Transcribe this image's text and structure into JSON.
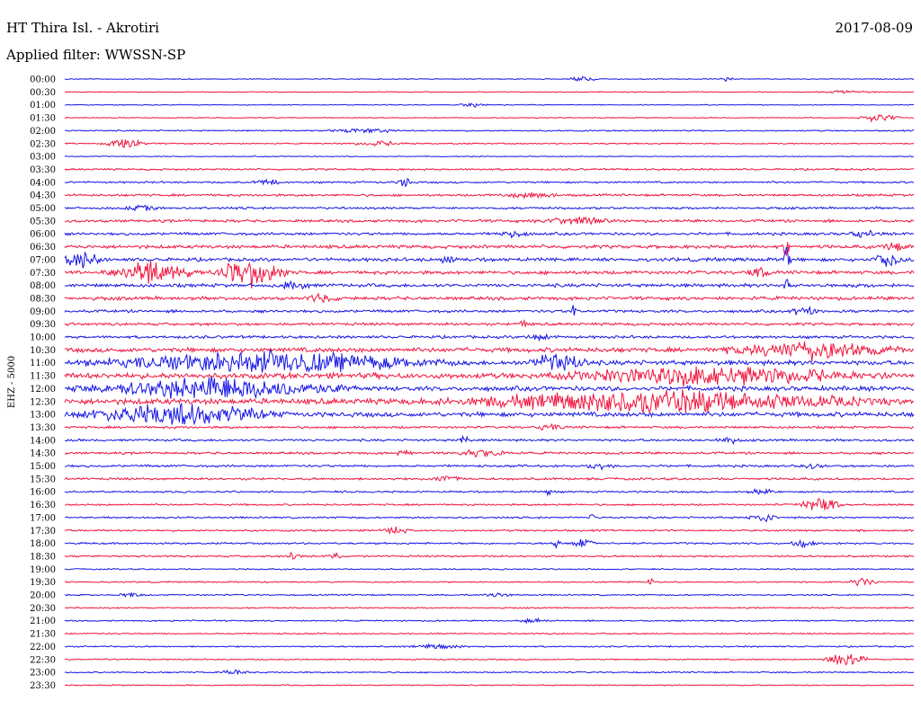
{
  "header": {
    "station": "HT Thira Isl. - Akrotiri",
    "date": "2017-08-09",
    "filter": "Applied filter: WWSSN-SP"
  },
  "channel_label": "EHZ - 5000",
  "colors": {
    "blue": "#1414e6",
    "red": "#f0143c",
    "background": "#ffffff",
    "text": "#000000"
  },
  "chart_data": {
    "type": "line",
    "subtype": "helicorder",
    "title": "HT Thira Isl. - Akrotiri",
    "subtitle": "Applied filter: WWSSN-SP",
    "ylabel": "EHZ - 5000",
    "xlabel": "",
    "minutes_per_line": 30,
    "alternating_colors": [
      "#1414e6",
      "#f0143c"
    ],
    "rows": [
      {
        "label": "00:00",
        "noise": 0.4,
        "events": [
          {
            "pos": 0.61,
            "amp": 3,
            "width": 0.02
          },
          {
            "pos": 0.78,
            "amp": 2,
            "width": 0.01
          }
        ]
      },
      {
        "label": "00:30",
        "noise": 0.4,
        "events": [
          {
            "pos": 0.92,
            "amp": 1.5,
            "width": 0.04
          }
        ]
      },
      {
        "label": "01:00",
        "noise": 0.4,
        "events": [
          {
            "pos": 0.48,
            "amp": 2,
            "width": 0.02
          }
        ]
      },
      {
        "label": "01:30",
        "noise": 0.4,
        "events": [
          {
            "pos": 0.96,
            "amp": 4,
            "width": 0.03
          }
        ]
      },
      {
        "label": "02:00",
        "noise": 0.6,
        "events": [
          {
            "pos": 0.35,
            "amp": 2,
            "width": 0.05
          }
        ]
      },
      {
        "label": "02:30",
        "noise": 0.6,
        "events": [
          {
            "pos": 0.07,
            "amp": 5,
            "width": 0.03
          },
          {
            "pos": 0.37,
            "amp": 2,
            "width": 0.04
          }
        ]
      },
      {
        "label": "03:00",
        "noise": 0.4,
        "events": []
      },
      {
        "label": "03:30",
        "noise": 0.8,
        "events": []
      },
      {
        "label": "04:00",
        "noise": 0.8,
        "events": [
          {
            "pos": 0.24,
            "amp": 3,
            "width": 0.02
          },
          {
            "pos": 0.4,
            "amp": 5,
            "width": 0.01
          }
        ]
      },
      {
        "label": "04:30",
        "noise": 1.0,
        "events": [
          {
            "pos": 0.55,
            "amp": 2,
            "width": 0.05
          }
        ]
      },
      {
        "label": "05:00",
        "noise": 1.0,
        "events": [
          {
            "pos": 0.09,
            "amp": 2,
            "width": 0.03
          }
        ]
      },
      {
        "label": "05:30",
        "noise": 1.2,
        "events": [
          {
            "pos": 0.6,
            "amp": 3,
            "width": 0.05
          }
        ]
      },
      {
        "label": "06:00",
        "noise": 1.2,
        "events": [
          {
            "pos": 0.53,
            "amp": 3,
            "width": 0.02
          },
          {
            "pos": 0.94,
            "amp": 3,
            "width": 0.02
          }
        ]
      },
      {
        "label": "06:30",
        "noise": 1.5,
        "events": [
          {
            "pos": 0.85,
            "amp": 12,
            "width": 0.005
          },
          {
            "pos": 0.98,
            "amp": 4,
            "width": 0.02
          }
        ]
      },
      {
        "label": "07:00",
        "noise": 1.5,
        "events": [
          {
            "pos": 0.02,
            "amp": 8,
            "width": 0.03
          },
          {
            "pos": 0.45,
            "amp": 4,
            "width": 0.01
          },
          {
            "pos": 0.85,
            "amp": 14,
            "width": 0.006
          },
          {
            "pos": 0.97,
            "amp": 8,
            "width": 0.02
          }
        ]
      },
      {
        "label": "07:30",
        "noise": 1.5,
        "events": [
          {
            "pos": 0.1,
            "amp": 12,
            "width": 0.06
          },
          {
            "pos": 0.22,
            "amp": 14,
            "width": 0.05
          },
          {
            "pos": 0.82,
            "amp": 4,
            "width": 0.02
          }
        ]
      },
      {
        "label": "08:00",
        "noise": 1.5,
        "events": [
          {
            "pos": 0.27,
            "amp": 4,
            "width": 0.02
          },
          {
            "pos": 0.85,
            "amp": 10,
            "width": 0.005
          }
        ]
      },
      {
        "label": "08:30",
        "noise": 1.5,
        "events": [
          {
            "pos": 0.3,
            "amp": 3,
            "width": 0.03
          }
        ]
      },
      {
        "label": "09:00",
        "noise": 1.2,
        "events": [
          {
            "pos": 0.6,
            "amp": 6,
            "width": 0.005
          },
          {
            "pos": 0.87,
            "amp": 4,
            "width": 0.02
          }
        ]
      },
      {
        "label": "09:30",
        "noise": 1.2,
        "events": [
          {
            "pos": 0.54,
            "amp": 4,
            "width": 0.005
          }
        ]
      },
      {
        "label": "10:00",
        "noise": 1.2,
        "events": [
          {
            "pos": 0.56,
            "amp": 3,
            "width": 0.02
          }
        ]
      },
      {
        "label": "10:30",
        "noise": 2.0,
        "events": [
          {
            "pos": 0.88,
            "amp": 8,
            "width": 0.12
          }
        ]
      },
      {
        "label": "11:00",
        "noise": 2.0,
        "events": [
          {
            "pos": 0.24,
            "amp": 10,
            "width": 0.24
          },
          {
            "pos": 0.58,
            "amp": 10,
            "width": 0.04
          }
        ]
      },
      {
        "label": "11:30",
        "noise": 2.5,
        "events": [
          {
            "pos": 0.76,
            "amp": 9,
            "width": 0.2
          }
        ]
      },
      {
        "label": "12:00",
        "noise": 2.0,
        "events": [
          {
            "pos": 0.18,
            "amp": 10,
            "width": 0.18
          }
        ]
      },
      {
        "label": "12:30",
        "noise": 2.5,
        "events": [
          {
            "pos": 0.7,
            "amp": 10,
            "width": 0.28
          }
        ]
      },
      {
        "label": "13:00",
        "noise": 2.0,
        "events": [
          {
            "pos": 0.13,
            "amp": 10,
            "width": 0.14
          }
        ]
      },
      {
        "label": "13:30",
        "noise": 1.0,
        "events": [
          {
            "pos": 0.57,
            "amp": 3,
            "width": 0.02
          }
        ]
      },
      {
        "label": "14:00",
        "noise": 1.0,
        "events": [
          {
            "pos": 0.47,
            "amp": 4,
            "width": 0.01
          },
          {
            "pos": 0.78,
            "amp": 3,
            "width": 0.02
          }
        ]
      },
      {
        "label": "14:30",
        "noise": 1.0,
        "events": [
          {
            "pos": 0.4,
            "amp": 4,
            "width": 0.01
          },
          {
            "pos": 0.49,
            "amp": 3,
            "width": 0.04
          }
        ]
      },
      {
        "label": "15:00",
        "noise": 1.0,
        "events": [
          {
            "pos": 0.63,
            "amp": 3,
            "width": 0.02
          },
          {
            "pos": 0.88,
            "amp": 2,
            "width": 0.02
          }
        ]
      },
      {
        "label": "15:30",
        "noise": 1.0,
        "events": [
          {
            "pos": 0.45,
            "amp": 3,
            "width": 0.02
          }
        ]
      },
      {
        "label": "16:00",
        "noise": 0.8,
        "events": [
          {
            "pos": 0.57,
            "amp": 5,
            "width": 0.005
          },
          {
            "pos": 0.82,
            "amp": 3,
            "width": 0.02
          }
        ]
      },
      {
        "label": "16:30",
        "noise": 0.8,
        "events": [
          {
            "pos": 0.89,
            "amp": 7,
            "width": 0.03
          }
        ]
      },
      {
        "label": "17:00",
        "noise": 0.8,
        "events": [
          {
            "pos": 0.62,
            "amp": 4,
            "width": 0.005
          },
          {
            "pos": 0.82,
            "amp": 5,
            "width": 0.02
          }
        ]
      },
      {
        "label": "17:30",
        "noise": 0.8,
        "events": [
          {
            "pos": 0.39,
            "amp": 3,
            "width": 0.02
          }
        ]
      },
      {
        "label": "18:00",
        "noise": 0.8,
        "events": [
          {
            "pos": 0.58,
            "amp": 9,
            "width": 0.005
          },
          {
            "pos": 0.61,
            "amp": 4,
            "width": 0.02
          },
          {
            "pos": 0.87,
            "amp": 3,
            "width": 0.02
          }
        ]
      },
      {
        "label": "18:30",
        "noise": 0.8,
        "events": [
          {
            "pos": 0.27,
            "amp": 4,
            "width": 0.01
          },
          {
            "pos": 0.32,
            "amp": 3,
            "width": 0.01
          }
        ]
      },
      {
        "label": "19:00",
        "noise": 0.6,
        "events": []
      },
      {
        "label": "19:30",
        "noise": 0.6,
        "events": [
          {
            "pos": 0.69,
            "amp": 6,
            "width": 0.005
          },
          {
            "pos": 0.94,
            "amp": 4,
            "width": 0.02
          }
        ]
      },
      {
        "label": "20:00",
        "noise": 0.6,
        "events": [
          {
            "pos": 0.08,
            "amp": 2,
            "width": 0.02
          },
          {
            "pos": 0.51,
            "amp": 2,
            "width": 0.02
          }
        ]
      },
      {
        "label": "20:30",
        "noise": 0.6,
        "events": []
      },
      {
        "label": "21:00",
        "noise": 0.6,
        "events": [
          {
            "pos": 0.55,
            "amp": 2,
            "width": 0.02
          }
        ]
      },
      {
        "label": "21:30",
        "noise": 0.6,
        "events": []
      },
      {
        "label": "22:00",
        "noise": 0.6,
        "events": [
          {
            "pos": 0.44,
            "amp": 2,
            "width": 0.04
          }
        ]
      },
      {
        "label": "22:30",
        "noise": 0.6,
        "events": [
          {
            "pos": 0.92,
            "amp": 8,
            "width": 0.03
          }
        ]
      },
      {
        "label": "23:00",
        "noise": 0.6,
        "events": [
          {
            "pos": 0.2,
            "amp": 3,
            "width": 0.02
          }
        ]
      },
      {
        "label": "23:30",
        "noise": 0.5,
        "events": []
      }
    ]
  }
}
